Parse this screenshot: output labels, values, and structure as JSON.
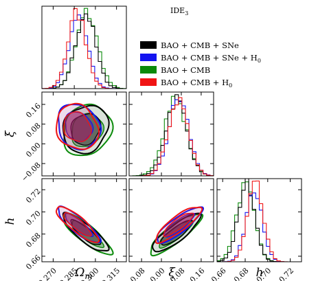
{
  "chart_data": {
    "type": "scatter",
    "subtype": "corner-triangle-plot",
    "title": "IDE",
    "title_subscript": "3",
    "parameters": [
      {
        "key": "Om",
        "label": "Ω",
        "label_subscript": "m",
        "ticks": [
          0.27,
          0.285,
          0.3,
          0.315
        ],
        "tick_labels": [
          "0.270",
          "0.285",
          "0.300",
          "0.315"
        ],
        "range": [
          0.262,
          0.322
        ]
      },
      {
        "key": "xi",
        "label": "ξ",
        "label_subscript": "",
        "ticks": [
          -0.08,
          0.0,
          0.08,
          0.16
        ],
        "tick_labels": [
          "−0.08",
          "0.00",
          "0.08",
          "0.16"
        ],
        "range": [
          -0.13,
          0.21
        ]
      },
      {
        "key": "h",
        "label": "h",
        "label_subscript": "",
        "ticks": [
          0.66,
          0.68,
          0.7,
          0.72
        ],
        "tick_labels": [
          "0.66",
          "0.68",
          "0.70",
          "0.72"
        ],
        "range": [
          0.655,
          0.73
        ]
      }
    ],
    "legend_placement": "top-right",
    "series": [
      {
        "name": "BAO + CMB + SNe",
        "label_subscript": "",
        "color": "#000000",
        "mean": {
          "Om": 0.293,
          "xi": 0.06,
          "h": 0.681
        },
        "sigma": {
          "Om": 0.007,
          "xi": 0.042,
          "h": 0.0075
        },
        "corr": {
          "Om_xi": 0.15,
          "Om_h": -0.85,
          "xi_h": 0.85
        }
      },
      {
        "name": "BAO + CMB + SNe + H",
        "label_subscript": "0",
        "color": "#1414f0",
        "mean": {
          "Om": 0.288,
          "xi": 0.07,
          "h": 0.688
        },
        "sigma": {
          "Om": 0.0065,
          "xi": 0.04,
          "h": 0.007
        },
        "corr": {
          "Om_xi": -0.15,
          "Om_h": -0.85,
          "xi_h": 0.85
        }
      },
      {
        "name": "BAO + CMB",
        "label_subscript": "",
        "color": "#0a8a0a",
        "mean": {
          "Om": 0.294,
          "xi": 0.055,
          "h": 0.68
        },
        "sigma": {
          "Om": 0.0075,
          "xi": 0.045,
          "h": 0.008
        },
        "corr": {
          "Om_xi": 0.15,
          "Om_h": -0.85,
          "xi_h": 0.85
        }
      },
      {
        "name": "BAO + CMB + H",
        "label_subscript": "0",
        "color": "#f01414",
        "mean": {
          "Om": 0.287,
          "xi": 0.068,
          "h": 0.689
        },
        "sigma": {
          "Om": 0.0065,
          "xi": 0.04,
          "h": 0.007
        },
        "corr": {
          "Om_xi": -0.15,
          "Om_h": -0.85,
          "xi_h": 0.85
        }
      }
    ],
    "grid": false
  }
}
